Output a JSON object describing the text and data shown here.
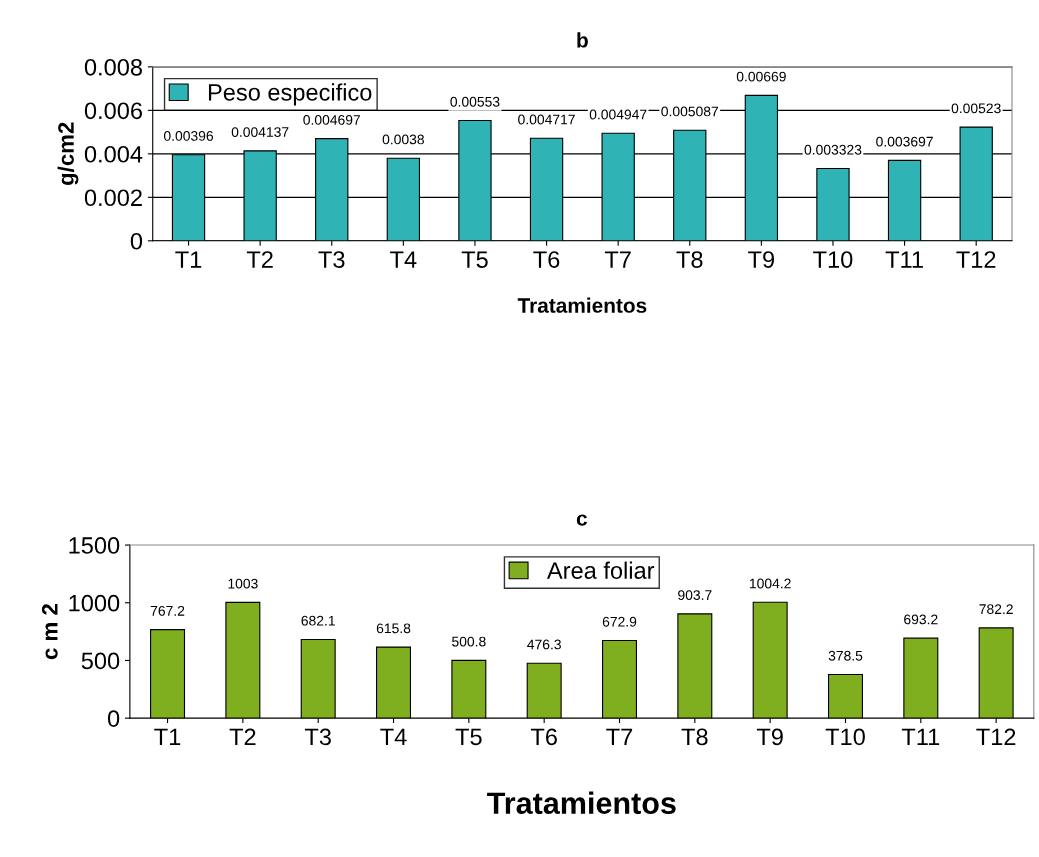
{
  "chart_data": [
    {
      "type": "bar",
      "title": "b",
      "xlabel": "Tratamientos",
      "ylabel": "g/cm2",
      "categories": [
        "T1",
        "T2",
        "T3",
        "T4",
        "T5",
        "T6",
        "T7",
        "T8",
        "T9",
        "T10",
        "T11",
        "T12"
      ],
      "series": [
        {
          "name": "Peso especifico",
          "color": "#2fb3b5",
          "values": [
            0.00396,
            0.004137,
            0.004697,
            0.0038,
            0.00553,
            0.004717,
            0.004947,
            0.005087,
            0.00669,
            0.003323,
            0.003697,
            0.00523
          ]
        }
      ],
      "ylim": [
        0,
        0.008
      ],
      "yticks": [
        {
          "value": 0,
          "label": "0"
        },
        0.002,
        0.004,
        0.006,
        0.008
      ],
      "grid": "y",
      "legend": "top left",
      "data_labels": true
    },
    {
      "type": "bar",
      "title": "c",
      "xlabel": "Tratamientos",
      "ylabel": "c m 2",
      "categories": [
        "T1",
        "T2",
        "T3",
        "T4",
        "T5",
        "T6",
        "T7",
        "T8",
        "T9",
        "T10",
        "T11",
        "T12"
      ],
      "series": [
        {
          "name": "Area foliar",
          "color": "#7fae1e",
          "values": [
            767.2,
            1003,
            682.1,
            615.8,
            500.8,
            476.3,
            672.9,
            903.7,
            1004.2,
            378.5,
            693.2,
            782.2
          ]
        }
      ],
      "ylim": [
        0,
        1500
      ],
      "yticks": [
        0,
        500,
        1000,
        1500
      ],
      "legend": "top",
      "data_labels": true
    }
  ]
}
